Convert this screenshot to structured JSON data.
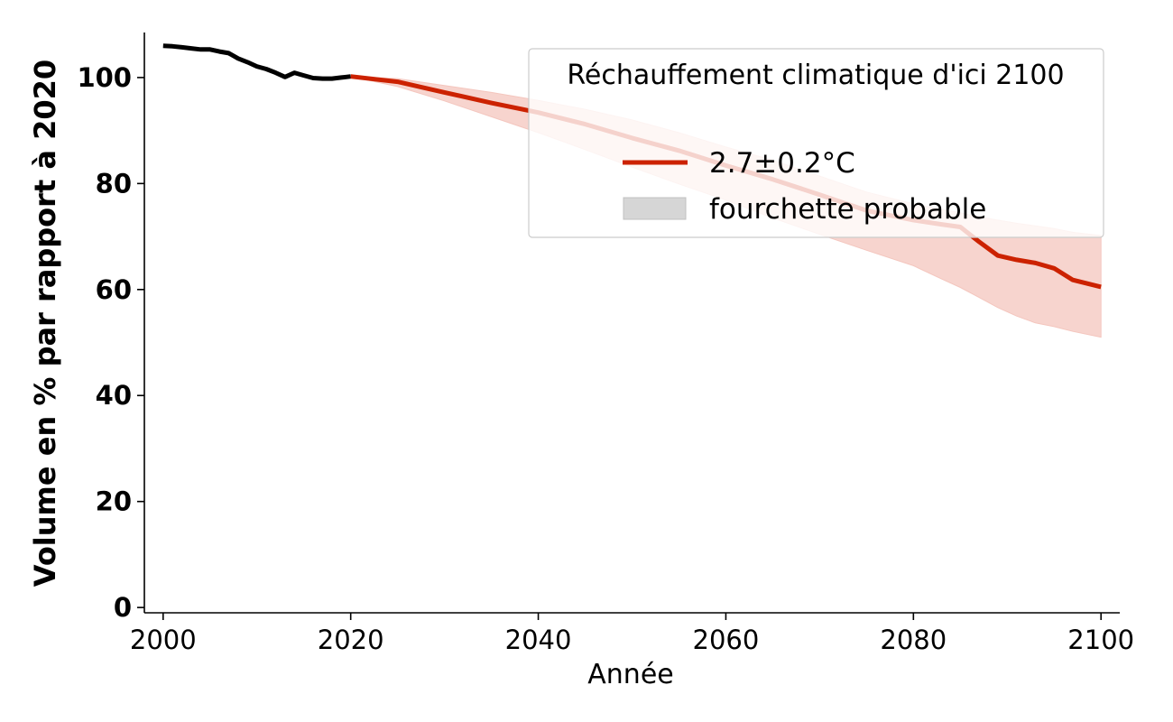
{
  "chart_data": {
    "type": "line",
    "xlabel": "Année",
    "ylabel": "Volume en % par rapport à 2020",
    "xlim": [
      1998,
      2102
    ],
    "ylim": [
      -1,
      108.5
    ],
    "x_ticks": [
      2000,
      2020,
      2040,
      2060,
      2080,
      2100
    ],
    "y_ticks": [
      0,
      20,
      40,
      60,
      80,
      100
    ],
    "grid": false,
    "legend": {
      "placement": "top-right",
      "title": "Réchauffement climatique d'ici 2100",
      "entries": [
        {
          "label": "2.7±0.2°C",
          "kind": "line",
          "color": "#cc2200"
        },
        {
          "label": "fourchette probable",
          "kind": "band",
          "color": "#d6d6d6"
        }
      ]
    },
    "series": [
      {
        "kind": "historical",
        "color": "#000000",
        "x": [
          2000,
          2001,
          2002,
          2003,
          2004,
          2005,
          2006,
          2007,
          2008,
          2009,
          2010,
          2011,
          2012,
          2013,
          2014,
          2015,
          2016,
          2017,
          2018,
          2019,
          2020
        ],
        "y": [
          106,
          105.9,
          105.7,
          105.5,
          105.3,
          105.3,
          104.9,
          104.6,
          103.6,
          102.9,
          102.1,
          101.6,
          100.9,
          100.1,
          100.9,
          100.4,
          99.9,
          99.8,
          99.8,
          100,
          100.2
        ]
      },
      {
        "kind": "projection",
        "name": "2.7±0.2°C",
        "color": "#cc2200",
        "band_color": "#f4c6be",
        "x": [
          2020,
          2025,
          2030,
          2035,
          2040,
          2045,
          2050,
          2055,
          2060,
          2065,
          2070,
          2075,
          2080,
          2083,
          2085,
          2087,
          2089,
          2091,
          2093,
          2095,
          2097,
          2100
        ],
        "y": [
          100.2,
          99.2,
          97.2,
          95.2,
          93.4,
          91.2,
          88.6,
          86.2,
          83.4,
          80.8,
          77.9,
          74.9,
          73.1,
          72.3,
          71.8,
          69.0,
          66.4,
          65.6,
          65.0,
          64.0,
          61.8,
          60.5
        ],
        "lower": [
          100.2,
          98.3,
          95.6,
          92.6,
          89.6,
          86.4,
          83.1,
          79.9,
          76.9,
          73.5,
          70.4,
          67.4,
          64.5,
          62.0,
          60.4,
          58.5,
          56.6,
          55.0,
          53.7,
          53.0,
          52.1,
          51.0
        ],
        "upper": [
          100.2,
          99.8,
          98.5,
          97.2,
          95.7,
          94.0,
          92.0,
          89.6,
          86.9,
          84.4,
          81.4,
          78.4,
          76.2,
          75.1,
          74.5,
          73.7,
          73.1,
          72.5,
          72.0,
          71.5,
          70.8,
          70.2
        ]
      }
    ]
  }
}
